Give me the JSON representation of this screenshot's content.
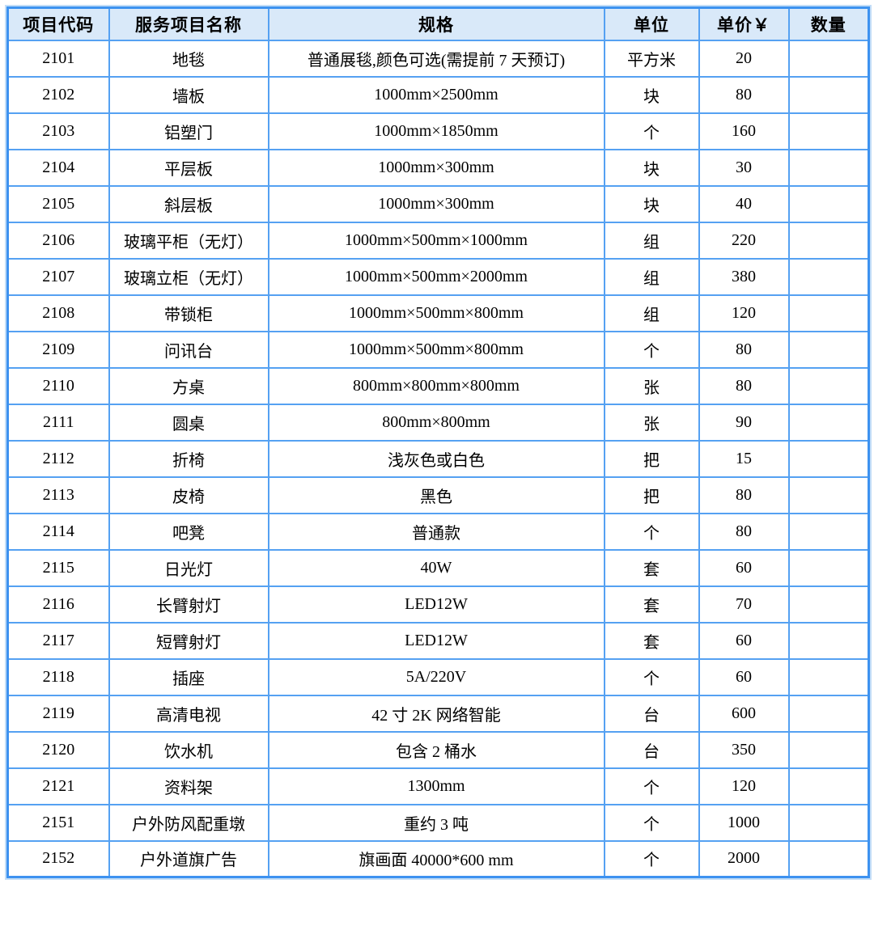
{
  "colors": {
    "grid_line": "#55a1f2",
    "outer_border": "#3d92f0",
    "outer_halo": "#c3ddf7",
    "header_background": "#d9e9f9",
    "text": "#000000"
  },
  "table": {
    "columns": [
      {
        "key": "code",
        "label": "项目代码"
      },
      {
        "key": "name",
        "label": "服务项目名称"
      },
      {
        "key": "spec",
        "label": "规格"
      },
      {
        "key": "unit",
        "label": "单位"
      },
      {
        "key": "price",
        "label": "单价￥"
      },
      {
        "key": "qty",
        "label": "数量"
      }
    ],
    "rows": [
      {
        "code": "2101",
        "name": "地毯",
        "spec": "普通展毯,颜色可选(需提前 7 天预订)",
        "unit": "平方米",
        "price": "20",
        "qty": ""
      },
      {
        "code": "2102",
        "name": "墙板",
        "spec": "1000mm×2500mm",
        "unit": "块",
        "price": "80",
        "qty": ""
      },
      {
        "code": "2103",
        "name": "铝塑门",
        "spec": "1000mm×1850mm",
        "unit": "个",
        "price": "160",
        "qty": ""
      },
      {
        "code": "2104",
        "name": "平层板",
        "spec": "1000mm×300mm",
        "unit": "块",
        "price": "30",
        "qty": ""
      },
      {
        "code": "2105",
        "name": "斜层板",
        "spec": "1000mm×300mm",
        "unit": "块",
        "price": "40",
        "qty": ""
      },
      {
        "code": "2106",
        "name": "玻璃平柜（无灯）",
        "spec": "1000mm×500mm×1000mm",
        "unit": "组",
        "price": "220",
        "qty": ""
      },
      {
        "code": "2107",
        "name": "玻璃立柜（无灯）",
        "spec": "1000mm×500mm×2000mm",
        "unit": "组",
        "price": "380",
        "qty": ""
      },
      {
        "code": "2108",
        "name": "带锁柜",
        "spec": "1000mm×500mm×800mm",
        "unit": "组",
        "price": "120",
        "qty": ""
      },
      {
        "code": "2109",
        "name": "问讯台",
        "spec": "1000mm×500mm×800mm",
        "unit": "个",
        "price": "80",
        "qty": ""
      },
      {
        "code": "2110",
        "name": "方桌",
        "spec": "800mm×800mm×800mm",
        "unit": "张",
        "price": "80",
        "qty": ""
      },
      {
        "code": "2111",
        "name": "圆桌",
        "spec": "800mm×800mm",
        "unit": "张",
        "price": "90",
        "qty": ""
      },
      {
        "code": "2112",
        "name": "折椅",
        "spec": "浅灰色或白色",
        "unit": "把",
        "price": "15",
        "qty": ""
      },
      {
        "code": "2113",
        "name": "皮椅",
        "spec": "黑色",
        "unit": "把",
        "price": "80",
        "qty": ""
      },
      {
        "code": "2114",
        "name": "吧凳",
        "spec": "普通款",
        "unit": "个",
        "price": "80",
        "qty": ""
      },
      {
        "code": "2115",
        "name": "日光灯",
        "spec": "40W",
        "unit": "套",
        "price": "60",
        "qty": ""
      },
      {
        "code": "2116",
        "name": "长臂射灯",
        "spec": "LED12W",
        "unit": "套",
        "price": "70",
        "qty": ""
      },
      {
        "code": "2117",
        "name": "短臂射灯",
        "spec": "LED12W",
        "unit": "套",
        "price": "60",
        "qty": ""
      },
      {
        "code": "2118",
        "name": "插座",
        "spec": "5A/220V",
        "unit": "个",
        "price": "60",
        "qty": ""
      },
      {
        "code": "2119",
        "name": "高清电视",
        "spec": "42 寸 2K 网络智能",
        "unit": "台",
        "price": "600",
        "qty": ""
      },
      {
        "code": "2120",
        "name": "饮水机",
        "spec": "包含 2 桶水",
        "unit": "台",
        "price": "350",
        "qty": ""
      },
      {
        "code": "2121",
        "name": "资料架",
        "spec": "1300mm",
        "unit": "个",
        "price": "120",
        "qty": ""
      },
      {
        "code": "2151",
        "name": "户外防风配重墩",
        "spec": "重约 3 吨",
        "unit": "个",
        "price": "1000",
        "qty": ""
      },
      {
        "code": "2152",
        "name": "户外道旗广告",
        "spec": "旗画面 40000*600 mm",
        "unit": "个",
        "price": "2000",
        "qty": ""
      }
    ]
  }
}
